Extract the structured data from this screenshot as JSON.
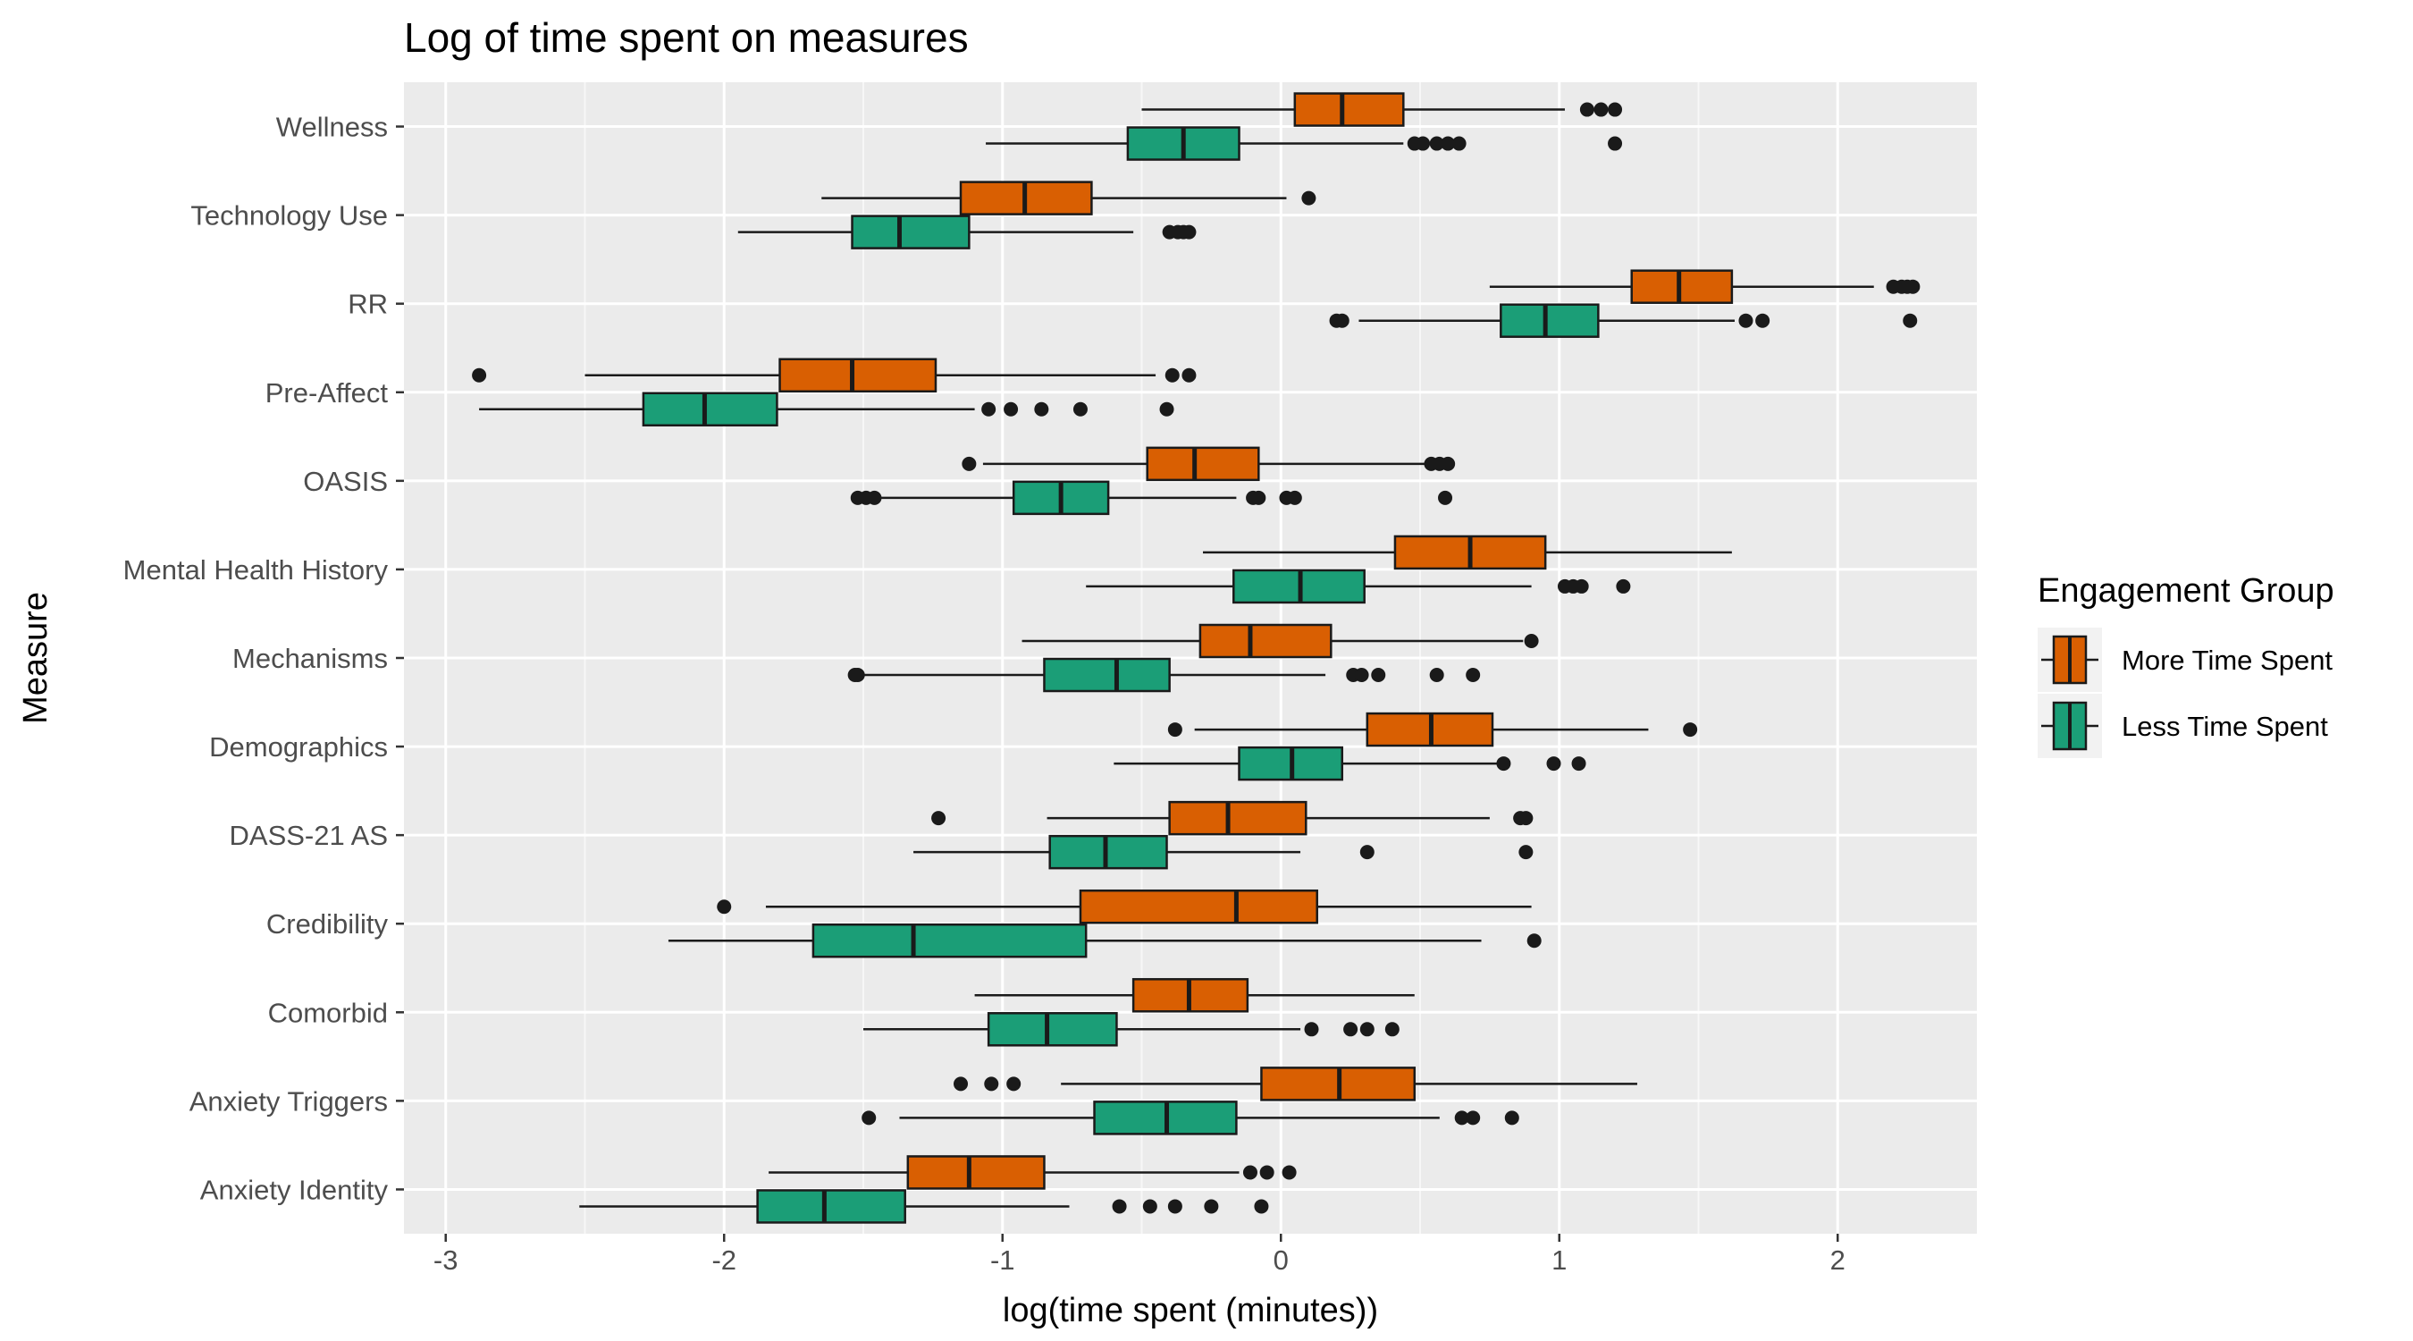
{
  "chart_data": {
    "type": "boxplot",
    "title": "Log of time spent on measures",
    "xlabel": "log(time spent (minutes))",
    "ylabel": "Measure",
    "xlim": [
      -3.15,
      2.5
    ],
    "xticks": [
      -3,
      -2,
      -1,
      0,
      1,
      2
    ],
    "grid": true,
    "orientation": "horizontal",
    "legend": {
      "title": "Engagement Group",
      "position": "right",
      "entries": [
        {
          "name": "More Time Spent",
          "color": "#D95F02"
        },
        {
          "name": "Less Time Spent",
          "color": "#1B9E77"
        }
      ]
    },
    "categories": [
      "Wellness",
      "Technology Use",
      "RR",
      "Pre-Affect",
      "OASIS",
      "Mental Health History",
      "Mechanisms",
      "Demographics",
      "DASS-21 AS",
      "Credibility",
      "Comorbid",
      "Anxiety Triggers",
      "Anxiety Identity"
    ],
    "series": [
      {
        "name": "More Time Spent",
        "color": "#D95F02",
        "boxes": [
          {
            "category": "Wellness",
            "whisker_low": -0.5,
            "q1": 0.05,
            "median": 0.22,
            "q3": 0.44,
            "whisker_high": 1.02,
            "outliers": [
              1.1,
              1.15,
              1.2
            ]
          },
          {
            "category": "Technology Use",
            "whisker_low": -1.65,
            "q1": -1.15,
            "median": -0.92,
            "q3": -0.68,
            "whisker_high": 0.02,
            "outliers": [
              0.1
            ]
          },
          {
            "category": "RR",
            "whisker_low": 0.75,
            "q1": 1.26,
            "median": 1.43,
            "q3": 1.62,
            "whisker_high": 2.13,
            "outliers": [
              2.2,
              2.23,
              2.25,
              2.27
            ]
          },
          {
            "category": "Pre-Affect",
            "whisker_low": -2.5,
            "q1": -1.8,
            "median": -1.54,
            "q3": -1.24,
            "whisker_high": -0.45,
            "outliers": [
              -2.88,
              -0.39,
              -0.33
            ]
          },
          {
            "category": "OASIS",
            "whisker_low": -1.07,
            "q1": -0.48,
            "median": -0.31,
            "q3": -0.08,
            "whisker_high": 0.52,
            "outliers": [
              -1.12,
              0.54,
              0.57,
              0.6
            ]
          },
          {
            "category": "Mental Health History",
            "whisker_low": -0.28,
            "q1": 0.41,
            "median": 0.68,
            "q3": 0.95,
            "whisker_high": 1.62,
            "outliers": []
          },
          {
            "category": "Mechanisms",
            "whisker_low": -0.93,
            "q1": -0.29,
            "median": -0.11,
            "q3": 0.18,
            "whisker_high": 0.87,
            "outliers": [
              0.9
            ]
          },
          {
            "category": "Demographics",
            "whisker_low": -0.31,
            "q1": 0.31,
            "median": 0.54,
            "q3": 0.76,
            "whisker_high": 1.32,
            "outliers": [
              -0.38,
              1.47
            ]
          },
          {
            "category": "DASS-21 AS",
            "whisker_low": -0.84,
            "q1": -0.4,
            "median": -0.19,
            "q3": 0.09,
            "whisker_high": 0.75,
            "outliers": [
              -1.23,
              0.86,
              0.88
            ]
          },
          {
            "category": "Credibility",
            "whisker_low": -1.85,
            "q1": -0.72,
            "median": -0.16,
            "q3": 0.13,
            "whisker_high": 0.9,
            "outliers": [
              -2.0
            ]
          },
          {
            "category": "Comorbid",
            "whisker_low": -1.1,
            "q1": -0.53,
            "median": -0.33,
            "q3": -0.12,
            "whisker_high": 0.48,
            "outliers": []
          },
          {
            "category": "Anxiety Triggers",
            "whisker_low": -0.79,
            "q1": -0.07,
            "median": 0.21,
            "q3": 0.48,
            "whisker_high": 1.28,
            "outliers": [
              -1.15,
              -1.04,
              -0.96
            ]
          },
          {
            "category": "Anxiety Identity",
            "whisker_low": -1.84,
            "q1": -1.34,
            "median": -1.12,
            "q3": -0.85,
            "whisker_high": -0.15,
            "outliers": [
              -0.11,
              -0.05,
              0.03
            ]
          }
        ]
      },
      {
        "name": "Less Time Spent",
        "color": "#1B9E77",
        "boxes": [
          {
            "category": "Wellness",
            "whisker_low": -1.06,
            "q1": -0.55,
            "median": -0.35,
            "q3": -0.15,
            "whisker_high": 0.44,
            "outliers": [
              0.48,
              0.51,
              0.56,
              0.6,
              0.64,
              1.2
            ]
          },
          {
            "category": "Technology Use",
            "whisker_low": -1.95,
            "q1": -1.54,
            "median": -1.37,
            "q3": -1.12,
            "whisker_high": -0.53,
            "outliers": [
              -0.4,
              -0.37,
              -0.35,
              -0.33
            ]
          },
          {
            "category": "RR",
            "whisker_low": 0.28,
            "q1": 0.79,
            "median": 0.95,
            "q3": 1.14,
            "whisker_high": 1.63,
            "outliers": [
              0.2,
              0.22,
              1.67,
              1.73,
              2.26
            ]
          },
          {
            "category": "Pre-Affect",
            "whisker_low": -2.88,
            "q1": -2.29,
            "median": -2.07,
            "q3": -1.81,
            "whisker_high": -1.1,
            "outliers": [
              -1.05,
              -0.97,
              -0.86,
              -0.72,
              -0.41
            ]
          },
          {
            "category": "OASIS",
            "whisker_low": -1.44,
            "q1": -0.96,
            "median": -0.79,
            "q3": -0.62,
            "whisker_high": -0.16,
            "outliers": [
              -1.52,
              -1.49,
              -1.46,
              -0.1,
              -0.08,
              0.02,
              0.05,
              0.59
            ]
          },
          {
            "category": "Mental Health History",
            "whisker_low": -0.7,
            "q1": -0.17,
            "median": 0.07,
            "q3": 0.3,
            "whisker_high": 0.9,
            "outliers": [
              1.02,
              1.05,
              1.08,
              1.23
            ]
          },
          {
            "category": "Mechanisms",
            "whisker_low": -1.5,
            "q1": -0.85,
            "median": -0.59,
            "q3": -0.4,
            "whisker_high": 0.16,
            "outliers": [
              -1.53,
              -1.52,
              0.26,
              0.29,
              0.35,
              0.56,
              0.69
            ]
          },
          {
            "category": "Demographics",
            "whisker_low": -0.6,
            "q1": -0.15,
            "median": 0.04,
            "q3": 0.22,
            "whisker_high": 0.79,
            "outliers": [
              0.8,
              0.98,
              1.07
            ]
          },
          {
            "category": "DASS-21 AS",
            "whisker_low": -1.32,
            "q1": -0.83,
            "median": -0.63,
            "q3": -0.41,
            "whisker_high": 0.07,
            "outliers": [
              0.31,
              0.88
            ]
          },
          {
            "category": "Credibility",
            "whisker_low": -2.2,
            "q1": -1.68,
            "median": -1.32,
            "q3": -0.7,
            "whisker_high": 0.72,
            "outliers": [
              0.91
            ]
          },
          {
            "category": "Comorbid",
            "whisker_low": -1.5,
            "q1": -1.05,
            "median": -0.84,
            "q3": -0.59,
            "whisker_high": 0.07,
            "outliers": [
              0.11,
              0.25,
              0.31,
              0.4
            ]
          },
          {
            "category": "Anxiety Triggers",
            "whisker_low": -1.37,
            "q1": -0.67,
            "median": -0.41,
            "q3": -0.16,
            "whisker_high": 0.57,
            "outliers": [
              -1.48,
              0.65,
              0.69,
              0.83
            ]
          },
          {
            "category": "Anxiety Identity",
            "whisker_low": -2.52,
            "q1": -1.88,
            "median": -1.64,
            "q3": -1.35,
            "whisker_high": -0.76,
            "outliers": [
              -0.58,
              -0.47,
              -0.38,
              -0.25,
              -0.07
            ]
          }
        ]
      }
    ]
  }
}
